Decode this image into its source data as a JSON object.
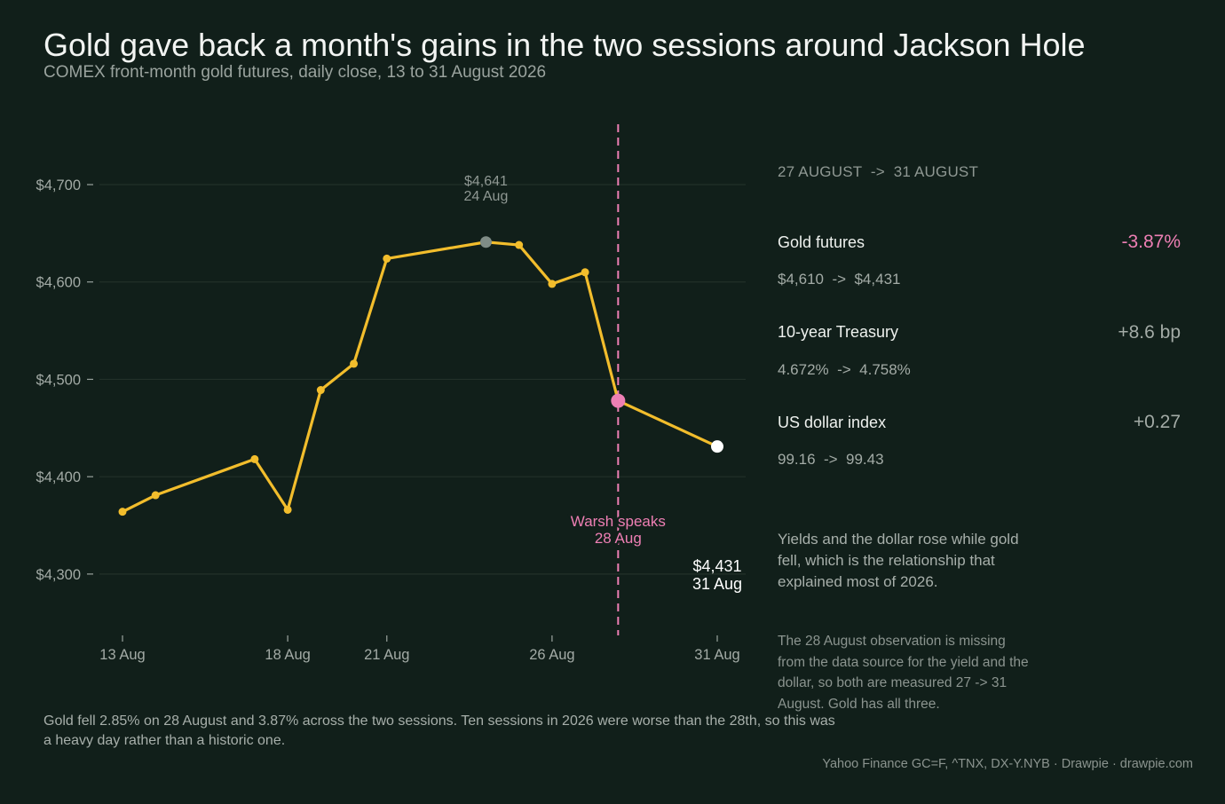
{
  "header": {
    "title": "Gold gave back a month's gains in the two sessions around Jackson Hole",
    "subtitle": "COMEX front-month gold futures, daily close, 13 to 31 August 2026"
  },
  "chart_data": {
    "type": "line",
    "ylim": [
      4237,
      4762
    ],
    "xlim": [
      13,
      31
    ],
    "yticks": [
      4300,
      4400,
      4500,
      4600,
      4700
    ],
    "ytick_labels": [
      "$4,300",
      "$4,400",
      "$4,500",
      "$4,600",
      "$4,700"
    ],
    "xticks": [
      13,
      18,
      21,
      26,
      31
    ],
    "xtick_labels": [
      "13 Aug",
      "18 Aug",
      "21 Aug",
      "26 Aug",
      "31 Aug"
    ],
    "grid": true,
    "series": [
      {
        "x": [
          13,
          14,
          17,
          18,
          19,
          20,
          21,
          24,
          25,
          26,
          27,
          28,
          31
        ],
        "values": [
          4364,
          4381,
          4418,
          4366,
          4489,
          4516,
          4624,
          4641,
          4638,
          4598,
          4610,
          4478,
          4431
        ],
        "color": "#f2bd2c"
      }
    ],
    "event": {
      "x": 28,
      "label": "Warsh speaks",
      "date_label": "28 Aug",
      "color": "#ee7fb4"
    },
    "peak": {
      "x": 24,
      "value": 4641,
      "value_label": "$4,641",
      "date_label": "24 Aug",
      "color": "#7f8c86"
    },
    "end": {
      "x": 31,
      "value": 4431,
      "value_label": "$4,431",
      "date_label": "31 Aug",
      "color": "#ffffff"
    }
  },
  "panel": {
    "heading": "27 AUGUST  ->  31 AUGUST",
    "metrics": [
      {
        "name": "Gold futures",
        "change": "-3.87%",
        "range": "$4,610  ->  $4,431",
        "color": "#ee7fb4"
      },
      {
        "name": "10-year Treasury",
        "change": "+8.6 bp",
        "range": "4.672%  ->  4.758%",
        "color": "#a3aba6"
      },
      {
        "name": "US dollar index",
        "change": "+0.27",
        "range": "99.16  ->  99.43",
        "color": "#a3aba6"
      }
    ],
    "note": "Yields and the dollar rose while gold fell, which is the relationship that explained most of 2026.",
    "caveat": "The 28 August observation is missing from the data source for the yield and the dollar, so both are measured 27 -> 31 August. Gold has all three."
  },
  "footer": {
    "text": "Gold fell 2.85% on 28 August and 3.87% across the two sessions. Ten sessions in 2026 were worse than the 28th, so this was a heavy day rather than a historic one.",
    "source": "Yahoo Finance GC=F, ^TNX, DX-Y.NYB  ·  Drawpie · drawpie.com"
  }
}
